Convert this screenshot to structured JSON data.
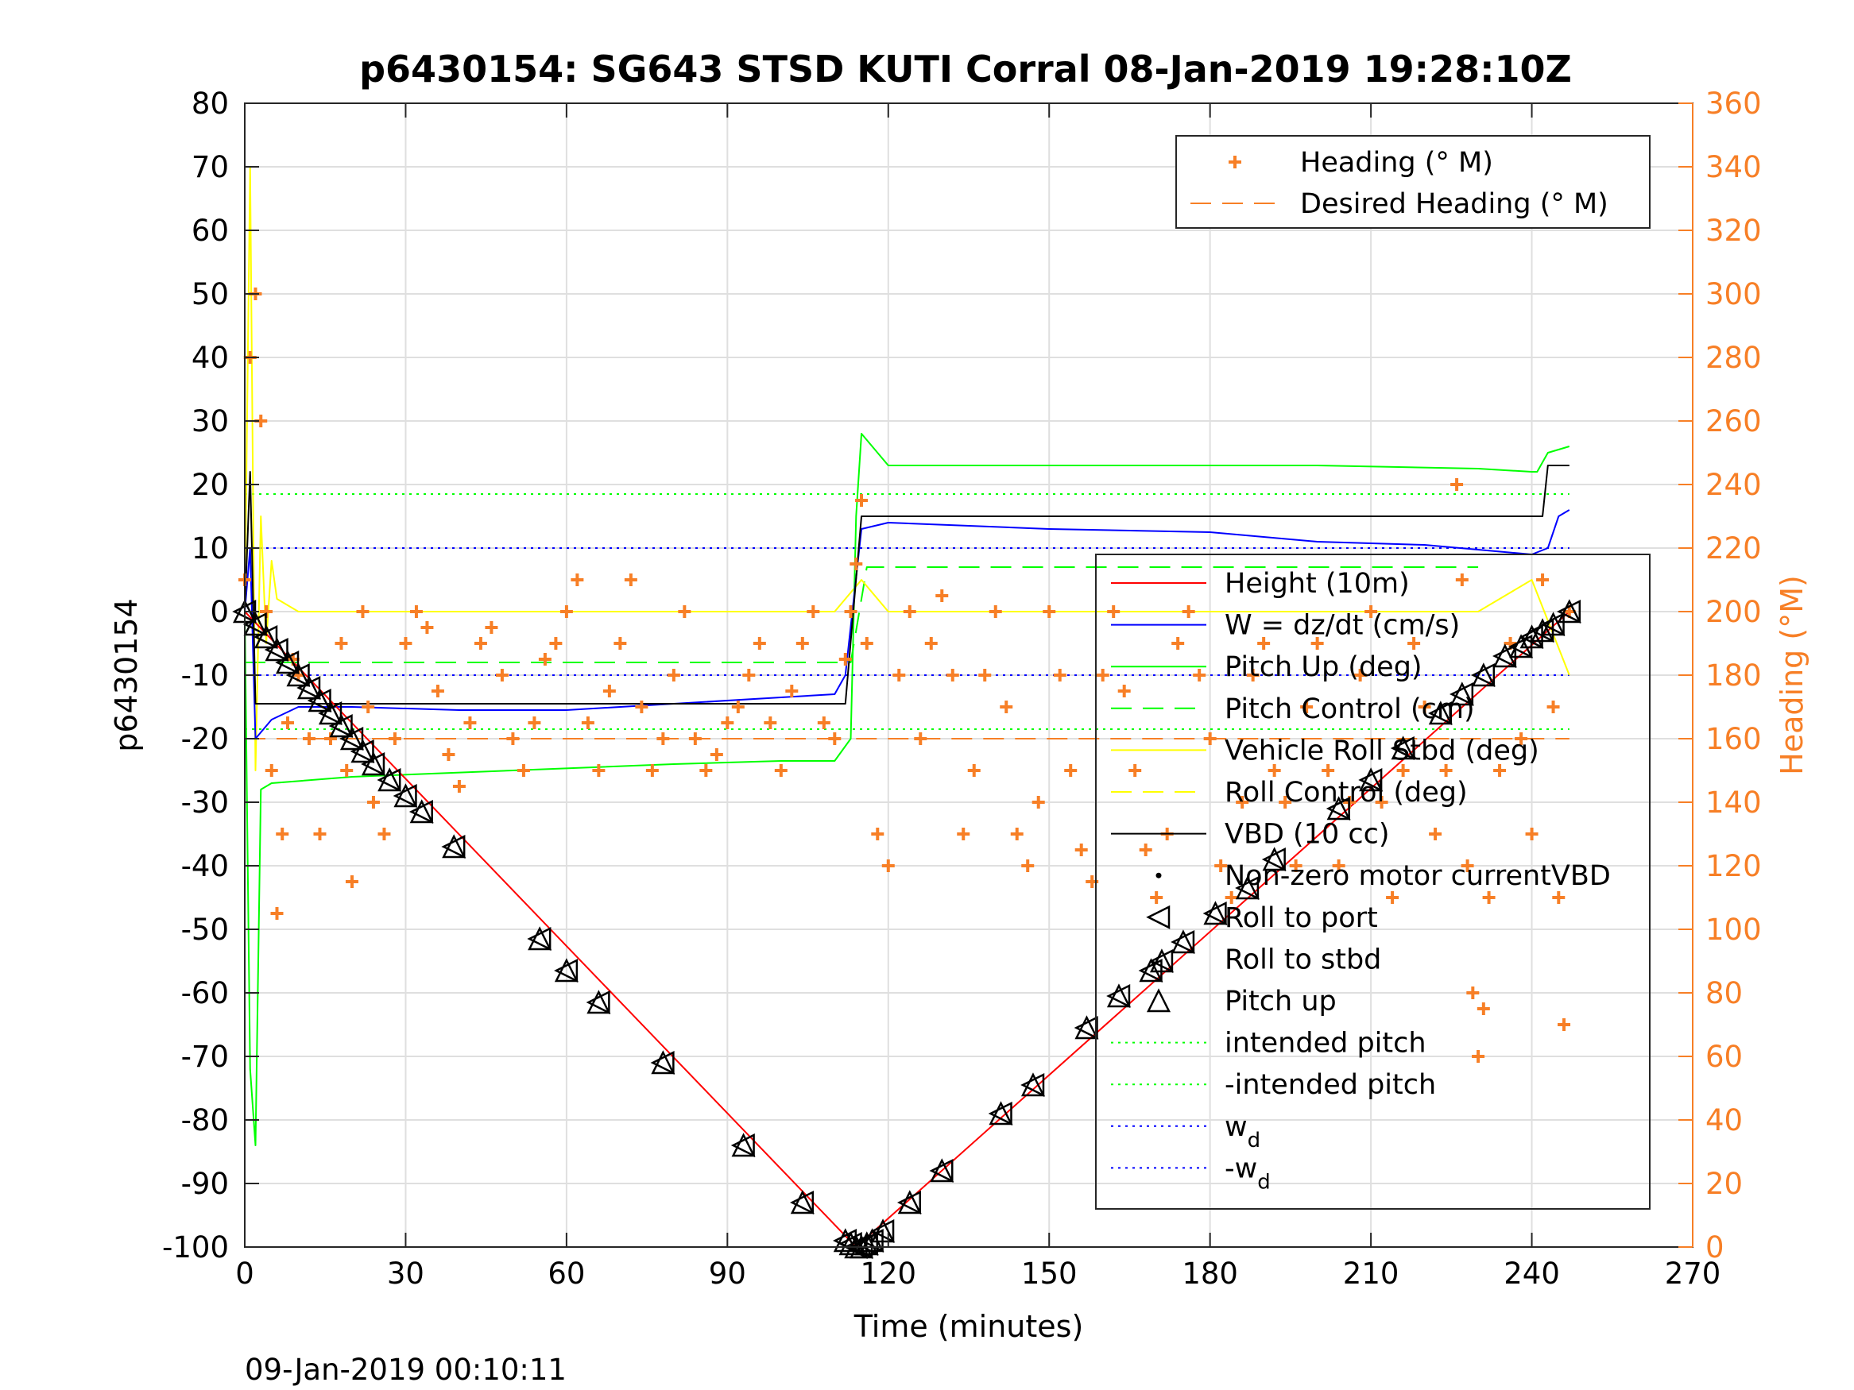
{
  "chart_data": {
    "type": "line",
    "title": "p6430154: SG643 STSD KUTI Corral 08-Jan-2019 19:28:10Z",
    "xlabel": "Time (minutes)",
    "ylabel": "p6430154",
    "y2label": "Heading (°M)",
    "footer": "09-Jan-2019 00:10:11",
    "xlim": [
      0,
      270
    ],
    "ylim": [
      -100,
      80
    ],
    "y2lim": [
      0,
      360
    ],
    "grid": true,
    "xticks": [
      "0",
      "30",
      "60",
      "90",
      "120",
      "150",
      "180",
      "210",
      "240",
      "270"
    ],
    "yticks": [
      "80",
      "70",
      "60",
      "50",
      "40",
      "30",
      "20",
      "10",
      "0",
      "-10",
      "-20",
      "-30",
      "-40",
      "-50",
      "-60",
      "-70",
      "-80",
      "-90",
      "-100"
    ],
    "y2ticks": [
      "360",
      "340",
      "320",
      "300",
      "280",
      "260",
      "240",
      "220",
      "200",
      "180",
      "160",
      "140",
      "120",
      "100",
      "80",
      "60",
      "40",
      "20",
      "0"
    ],
    "colors": {
      "height": "#FF0000",
      "w": "#0000FF",
      "pitch": "#00FF00",
      "roll": "#FFFF00",
      "vbd": "#000000",
      "heading": "#F77F26"
    },
    "legend_heading": [
      {
        "label": "Heading (° M)",
        "style": "plus",
        "color": "#F77F26"
      },
      {
        "label": "Desired Heading (° M)",
        "style": "dash",
        "color": "#F77F26"
      }
    ],
    "legend_main": [
      {
        "label": "Height (10m)",
        "style": "solid",
        "color": "#FF0000"
      },
      {
        "label": "W = dz/dt (cm/s)",
        "style": "solid",
        "color": "#0000FF"
      },
      {
        "label": "Pitch Up (deg)",
        "style": "solid",
        "color": "#00FF00"
      },
      {
        "label": "Pitch Control (cm)",
        "style": "dash",
        "color": "#00FF00"
      },
      {
        "label": "Vehicle Roll Stbd (deg)",
        "style": "solid",
        "color": "#FFFF00"
      },
      {
        "label": "Roll Control (deg)",
        "style": "dash",
        "color": "#FFFF00"
      },
      {
        "label": "VBD (10 cc)",
        "style": "solid",
        "color": "#000000"
      },
      {
        "label": "Non-zero motor currentVBD",
        "style": "dot",
        "color": "#000000"
      },
      {
        "label": "Roll to port",
        "style": "tri-left",
        "color": "#000000"
      },
      {
        "label": "Roll to stbd",
        "style": "none",
        "color": "#000000"
      },
      {
        "label": "Pitch up",
        "style": "tri-up",
        "color": "#000000"
      },
      {
        "label": "intended pitch",
        "style": "dotted",
        "color": "#00FF00"
      },
      {
        "label": "-intended pitch",
        "style": "dotted",
        "color": "#00FF00"
      },
      {
        "label": "w",
        "sub": "d",
        "style": "dotted",
        "color": "#0000FF"
      },
      {
        "label": "-w",
        "sub": "d",
        "style": "dotted",
        "color": "#0000FF"
      }
    ],
    "series": [
      {
        "key": "height",
        "x": [
          0,
          114,
          247
        ],
        "y": [
          0,
          -100,
          0
        ]
      },
      {
        "key": "w",
        "x": [
          0,
          1,
          2,
          5,
          10,
          20,
          40,
          60,
          80,
          100,
          110,
          112,
          115,
          120,
          150,
          180,
          200,
          220,
          240,
          243,
          245,
          247
        ],
        "y": [
          0,
          10,
          -20,
          -17,
          -15,
          -15,
          -15.5,
          -15.5,
          -14.5,
          -13.5,
          -13,
          -10,
          13,
          14,
          13,
          12.5,
          11,
          10.5,
          9,
          10,
          15,
          16
        ]
      },
      {
        "key": "pitch",
        "x": [
          0,
          1,
          2,
          3,
          5,
          20,
          50,
          80,
          100,
          110,
          113,
          114,
          115,
          120,
          150,
          200,
          230,
          240,
          241,
          243,
          247
        ],
        "y": [
          0,
          -72,
          -84,
          -28,
          -27,
          -26,
          -25,
          -24,
          -23.5,
          -23.5,
          -20,
          15,
          28,
          23,
          23,
          23,
          22.5,
          22,
          22,
          25,
          26
        ]
      },
      {
        "key": "pitch_control",
        "x": [
          0,
          8,
          8,
          110,
          113,
          116,
          116,
          230
        ],
        "y": [
          -8,
          -8,
          -8,
          -8,
          -8,
          7,
          7,
          7
        ]
      },
      {
        "key": "roll",
        "x": [
          0,
          1,
          2,
          3,
          4,
          5,
          6,
          8,
          10,
          40,
          80,
          110,
          115,
          120,
          200,
          230,
          240,
          247
        ],
        "y": [
          0,
          70,
          -25,
          15,
          -5,
          8,
          2,
          1,
          0,
          0,
          0,
          0,
          5,
          0,
          0,
          0,
          5,
          -10
        ]
      },
      {
        "key": "vbd",
        "x": [
          0,
          1,
          2,
          110,
          112,
          115,
          242,
          243,
          247
        ],
        "y": [
          0,
          22,
          -14.5,
          -14.5,
          -14.5,
          15,
          15,
          23,
          23
        ]
      },
      {
        "key": "intended_pitch",
        "x": [
          0,
          247
        ],
        "y": [
          18.5,
          18.5
        ]
      },
      {
        "key": "neg_intended_pitch",
        "x": [
          0,
          247
        ],
        "y": [
          -18.5,
          -18.5
        ]
      },
      {
        "key": "wd",
        "x": [
          0,
          247
        ],
        "y": [
          10,
          10
        ]
      },
      {
        "key": "neg_wd",
        "x": [
          0,
          247
        ],
        "y": [
          -10,
          -10
        ]
      }
    ],
    "desired_heading": [
      {
        "x": [
          0,
          112
        ],
        "y": [
          160,
          160
        ]
      },
      {
        "x": [
          114,
          247
        ],
        "y": [
          160,
          160
        ]
      }
    ],
    "heading_points": {
      "x": [
        0,
        1,
        2,
        3,
        4,
        5,
        6,
        7,
        8,
        9,
        10,
        12,
        14,
        16,
        18,
        19,
        20,
        22,
        23,
        24,
        26,
        28,
        30,
        32,
        34,
        36,
        38,
        40,
        42,
        44,
        46,
        48,
        50,
        52,
        54,
        56,
        58,
        60,
        62,
        64,
        66,
        68,
        70,
        72,
        74,
        76,
        78,
        80,
        82,
        84,
        86,
        88,
        90,
        92,
        94,
        96,
        98,
        100,
        102,
        104,
        106,
        108,
        110,
        112,
        113,
        114,
        115,
        116,
        118,
        120,
        122,
        124,
        126,
        128,
        130,
        132,
        134,
        136,
        138,
        140,
        142,
        144,
        146,
        148,
        150,
        152,
        154,
        156,
        158,
        160,
        162,
        164,
        166,
        168,
        170,
        172,
        174,
        176,
        178,
        180,
        182,
        184,
        186,
        188,
        190,
        192,
        194,
        196,
        198,
        200,
        202,
        204,
        206,
        208,
        210,
        212,
        214,
        216,
        218,
        220,
        222,
        224,
        226,
        227,
        228,
        229,
        230,
        231,
        232,
        234,
        236,
        238,
        240,
        242,
        244,
        245,
        246,
        247
      ],
      "y": [
        210,
        280,
        300,
        260,
        200,
        150,
        105,
        130,
        165,
        185,
        180,
        160,
        130,
        160,
        190,
        150,
        115,
        200,
        170,
        140,
        130,
        160,
        190,
        200,
        195,
        175,
        155,
        145,
        165,
        190,
        195,
        180,
        160,
        150,
        165,
        185,
        190,
        200,
        210,
        165,
        150,
        175,
        190,
        210,
        170,
        150,
        160,
        180,
        200,
        160,
        150,
        155,
        165,
        170,
        180,
        190,
        165,
        150,
        175,
        190,
        200,
        165,
        160,
        185,
        200,
        215,
        235,
        190,
        130,
        120,
        180,
        200,
        160,
        190,
        205,
        180,
        130,
        150,
        180,
        200,
        170,
        130,
        120,
        140,
        200,
        180,
        150,
        125,
        115,
        180,
        200,
        175,
        150,
        125,
        110,
        130,
        190,
        200,
        180,
        160,
        120,
        110,
        140,
        180,
        190,
        150,
        140,
        120,
        170,
        190,
        150,
        120,
        140,
        180,
        200,
        140,
        110,
        150,
        190,
        170,
        130,
        150,
        240,
        210,
        120,
        80,
        60,
        75,
        110,
        150,
        190,
        160,
        130,
        210,
        170,
        110,
        70,
        200
      ]
    },
    "triangle_points": {
      "x": [
        0,
        2,
        4,
        6,
        8,
        10,
        12,
        14,
        16,
        18,
        20,
        22,
        24,
        27,
        30,
        33,
        39,
        55,
        60,
        66,
        78,
        93,
        104,
        112,
        113,
        114,
        115,
        116,
        117,
        119,
        124,
        130,
        141,
        147,
        157,
        163,
        169,
        171,
        175,
        181,
        187,
        192,
        204,
        210,
        216,
        223,
        227,
        231,
        235,
        238,
        240,
        242,
        244,
        247
      ],
      "y": [
        0,
        -2,
        -4,
        -6,
        -8,
        -10,
        -12,
        -14,
        -16,
        -18,
        -20,
        -22,
        -24,
        -26.5,
        -29,
        -31.5,
        -37,
        -51.5,
        -56.5,
        -61.5,
        -71,
        -84,
        -93,
        -99,
        -99.5,
        -100,
        -100,
        -99.5,
        -99,
        -97.5,
        -93,
        -88,
        -79,
        -74.5,
        -65.5,
        -60.5,
        -56.5,
        -55,
        -52,
        -47.5,
        -43.5,
        -39,
        -31,
        -26.5,
        -21.5,
        -16,
        -13,
        -10,
        -7,
        -5.5,
        -4,
        -3,
        -2,
        0
      ]
    }
  }
}
